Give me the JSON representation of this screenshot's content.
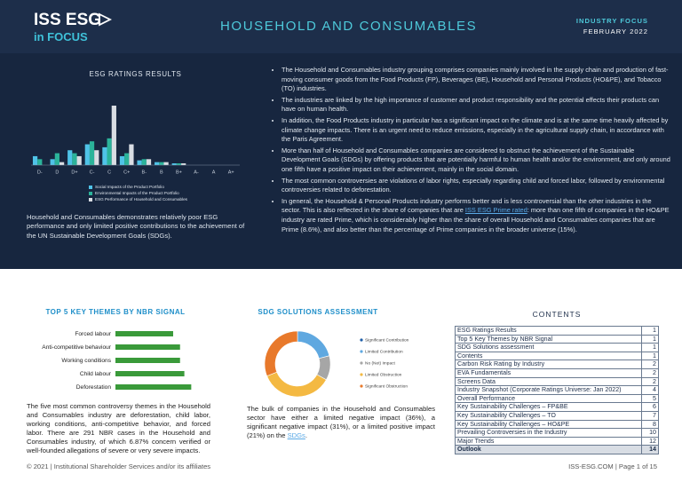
{
  "header": {
    "logo": "ISS ESG",
    "logo_sub": "in FOCUS",
    "title": "HOUSEHOLD AND CONSUMABLES",
    "kicker": "INDUSTRY FOCUS",
    "date": "FEBRUARY 2022"
  },
  "esg_chart": {
    "type": "bar",
    "title": "ESG RATINGS RESULTS",
    "categories": [
      "D-",
      "D",
      "D+",
      "C-",
      "C",
      "C+",
      "B-",
      "B",
      "B+",
      "A-",
      "A",
      "A+"
    ],
    "ylim": [
      0,
      100
    ],
    "series": [
      {
        "name": "Social Impacts of the Product Portfolio",
        "color": "#4fc3e8",
        "values": [
          15,
          10,
          25,
          35,
          30,
          15,
          8,
          5,
          3,
          0,
          0,
          0
        ]
      },
      {
        "name": "Environmental Impacts of the Product Portfolio",
        "color": "#2bb39a",
        "values": [
          10,
          20,
          20,
          40,
          45,
          20,
          10,
          5,
          3,
          0,
          0,
          0
        ]
      },
      {
        "name": "ESG Performance of Household and Consumables",
        "color": "#d9dde3",
        "values": [
          0,
          5,
          15,
          25,
          100,
          35,
          10,
          5,
          3,
          0,
          0,
          0
        ]
      }
    ]
  },
  "esg_summary": "Household and Consumables demonstrates relatively poor ESG performance and only limited positive contributions to the achievement of the UN Sustainable Development Goals (SDGs).",
  "bullets": [
    "The Household and Consumables industry grouping comprises companies mainly involved in the supply chain and production of fast-moving consumer goods from the Food Products (FP), Beverages (BE), Household and Personal Products (HO&PE), and Tobacco (TO) industries.",
    "The industries are linked by the high importance of customer and product responsibility and the potential effects their products can have on human health.",
    "In addition, the Food Products industry in particular has a significant impact on the climate and is at the same time heavily affected by climate change impacts. There is an urgent need to reduce emissions, especially in the agricultural supply chain, in accordance with the Paris Agreement.",
    "More than half of Household and Consumables companies are considered to obstruct the achievement of the Sustainable Development Goals (SDGs) by offering products that are potentially harmful to human health and/or the environment, and only around one fifth have a positive impact on their achievement, mainly in the social domain.",
    "The most common controversies are violations of labor rights, especially regarding child and forced labor, followed by environmental controversies related to deforestation.",
    {
      "before": "In general, the Household & Personal Products industry performs better and is less controversial than the other industries in the sector. This is also reflected in the share of companies that are ",
      "link": "ISS ESG Prime rated",
      "after": ": more than one fifth of companies in the HO&PE industry are rated Prime, which is considerably higher than the share of overall Household and Consumables companies that are Prime (8.6%), and also better than the percentage of Prime companies in the broader universe (15%)."
    }
  ],
  "themes_chart": {
    "type": "hbar",
    "title": "TOP 5 KEY THEMES BY NBR SIGNAL",
    "categories": [
      "Forced labour",
      "Anti-competitive behaviour",
      "Working conditions",
      "Child labour",
      "Deforestation"
    ],
    "values": [
      67,
      75,
      75,
      80,
      88
    ],
    "color": "#3a9a3a",
    "xlim": [
      0,
      100
    ]
  },
  "themes_text": "The five most common controversy themes in the Household and Consumables industry are deforestation, child labor, working conditions, anti-competitive behavior, and forced labor. There are 291 NBR cases in the Household and Consumables industry, of which 6.87% concern verified or well-founded allegations of severe or very severe impacts.",
  "sdg_chart": {
    "type": "donut",
    "title": "SDG SOLUTIONS ASSESSMENT",
    "categories": [
      "Significant Contribution",
      "Limited Contribution",
      "No (Net) Impact",
      "Limited Obstruction",
      "Significant Obstruction"
    ],
    "values": [
      0,
      21,
      12,
      36,
      31
    ],
    "colors": [
      "#1f5fa8",
      "#5fa8e0",
      "#a6a6a6",
      "#f4b942",
      "#e8792b"
    ]
  },
  "sdg_text": {
    "before": "The bulk of companies in the Household and Consumables sector have either a limited negative impact (36%), a significant negative impact (31%), or a limited positive impact (21%) on the ",
    "link": "SDGs",
    "after": "."
  },
  "contents": {
    "title": "CONTENTS",
    "rows": [
      [
        "ESG Ratings Results",
        "1"
      ],
      [
        "Top 5 Key Themes by NBR Signal",
        "1"
      ],
      [
        "SDG Solutions assessment",
        "1"
      ],
      [
        "Contents",
        "1"
      ],
      [
        "Carbon Risk Rating by Industry",
        "2"
      ],
      [
        "EVA Fundamentals",
        "2"
      ],
      [
        "Screens Data",
        "2"
      ],
      [
        "Industry Snapshot (Corporate Ratings Universe: Jan 2022)",
        "4"
      ],
      [
        "Overall Performance",
        "5"
      ],
      [
        "Key Sustainability Challenges – FP&BE",
        "6"
      ],
      [
        "Key Sustainability Challenges – TO",
        "7"
      ],
      [
        "Key Sustainability Challenges – HO&PE",
        "8"
      ],
      [
        "Prevailing Controversies in the Industry",
        "10"
      ],
      [
        "Major Trends",
        "12"
      ],
      [
        "Outlook",
        "14"
      ]
    ]
  },
  "footer": {
    "left": "© 2021 | Institutional Shareholder Services and/or its affiliates",
    "right": "ISS-ESG.COM | Page 1 of 15"
  }
}
